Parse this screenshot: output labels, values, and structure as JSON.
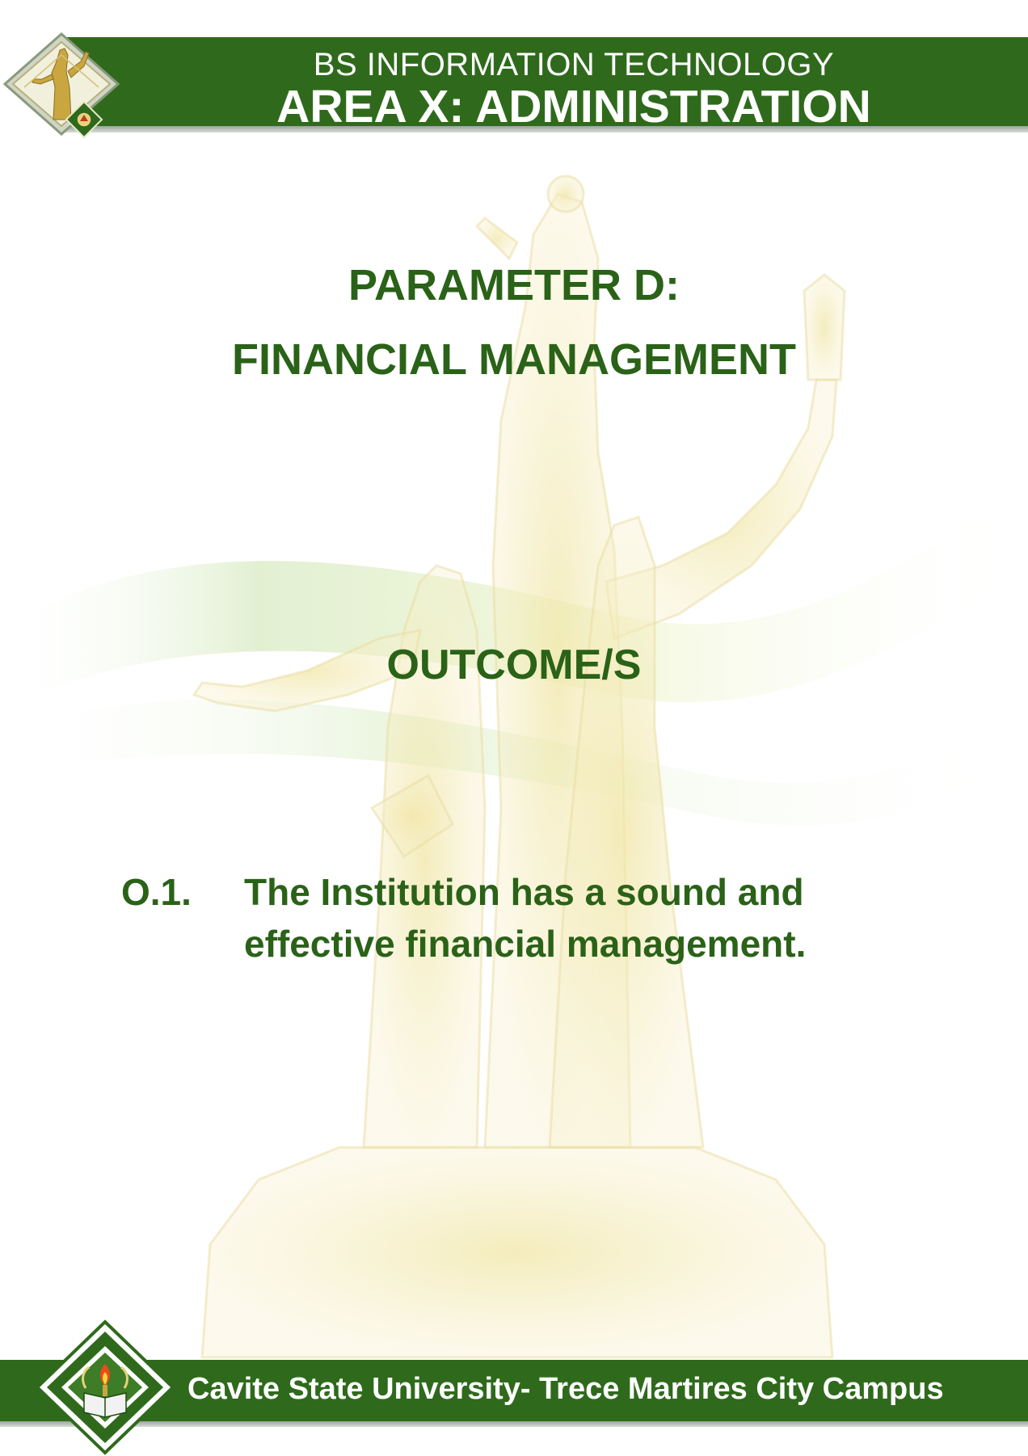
{
  "header": {
    "program": "BS INFORMATION TECHNOLOGY",
    "area": "AREA X: ADMINISTRATION"
  },
  "parameter": {
    "title": "PARAMETER D:",
    "subtitle": "FINANCIAL MANAGEMENT"
  },
  "outcomes": {
    "heading": "OUTCOME/S",
    "items": [
      {
        "number": "O.1.",
        "text": "The Institution has a sound and effective financial management."
      }
    ]
  },
  "footer": {
    "campus": "Cavite State University- Trece Martires City Campus"
  },
  "colors": {
    "brand_green": "#2f6a1c",
    "text_green": "#2a6218"
  }
}
